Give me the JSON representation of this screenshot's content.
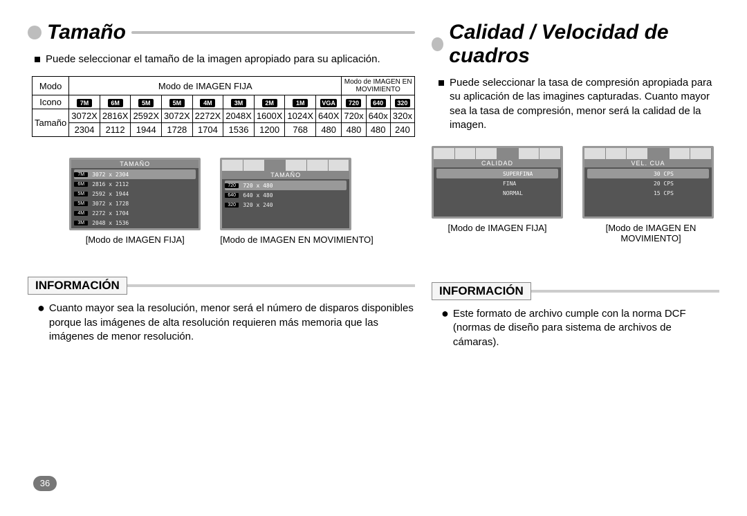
{
  "left": {
    "heading": "Tamaño",
    "intro": "Puede seleccionar el tamaño de la imagen apropiado para su aplicación.",
    "table": {
      "row1c1": "Modo",
      "row1c2": "Modo de IMAGEN FIJA",
      "row1c3": "Modo de IMAGEN EN MOVIMIENTO",
      "row2c1": "Icono",
      "icons": [
        "7M",
        "6M",
        "5M",
        "5M",
        "4M",
        "3M",
        "2M",
        "1M",
        "VGA",
        "720",
        "640",
        "320"
      ],
      "row3c1": "Tamaño",
      "sizes_top": [
        "3072X",
        "2816X",
        "2592X",
        "3072X",
        "2272X",
        "2048X",
        "1600X",
        "1024X",
        "640X",
        "720x",
        "640x",
        "320x"
      ],
      "sizes_bottom": [
        "2304",
        "2112",
        "1944",
        "1728",
        "1704",
        "1536",
        "1200",
        "768",
        "480",
        "480",
        "480",
        "240"
      ]
    },
    "menus": {
      "still": {
        "title": "TAMAÑO",
        "rows": [
          {
            "tag": "7M",
            "val": "3072 x 2304",
            "hl": true
          },
          {
            "tag": "6M",
            "val": "2816 x 2112"
          },
          {
            "tag": "5M",
            "val": "2592 x 1944"
          },
          {
            "tag": "5M",
            "val": "3072 x 1728"
          },
          {
            "tag": "4M",
            "val": "2272 x 1704"
          },
          {
            "tag": "3M",
            "val": "2048 x 1536"
          }
        ],
        "caption": "[Modo de IMAGEN FIJA]"
      },
      "movie": {
        "title": "TAMAÑO",
        "rows": [
          {
            "tag": "720",
            "val": "720 x 480",
            "hl": true
          },
          {
            "tag": "640",
            "val": "640 x 480"
          },
          {
            "tag": "320",
            "val": "320 x 240"
          }
        ],
        "caption": "[Modo de IMAGEN EN MOVIMIENTO]"
      }
    },
    "info": {
      "title": "INFORMACIÓN",
      "text": "Cuanto mayor sea la resolución, menor será el número de disparos disponibles porque las imágenes de alta resolución requieren más memoria que las imágenes de menor resolución."
    }
  },
  "right": {
    "heading": "Calidad / Velocidad de cuadros",
    "intro": "Puede seleccionar la tasa de compresión apropiada para su aplicación de las imagines capturadas. Cuanto mayor sea la tasa de compresión, menor será la calidad de la imagen.",
    "menus": {
      "quality": {
        "title": "CALIDAD",
        "rows": [
          {
            "val": "SUPERFINA",
            "hl": true
          },
          {
            "val": "FINA"
          },
          {
            "val": "NORMAL"
          }
        ],
        "caption": "[Modo de IMAGEN FIJA]"
      },
      "fps": {
        "title": "VEL. CUA",
        "rows": [
          {
            "val": "30 CPS",
            "hl": true
          },
          {
            "val": "20 CPS"
          },
          {
            "val": "15 CPS"
          }
        ],
        "caption": "[Modo de IMAGEN EN MOVIMIENTO]"
      }
    },
    "info": {
      "title": "INFORMACIÓN",
      "text": "Este formato de archivo cumple con la norma DCF (normas de diseño para sistema de archivos de cámaras)."
    }
  },
  "page_number": "36"
}
